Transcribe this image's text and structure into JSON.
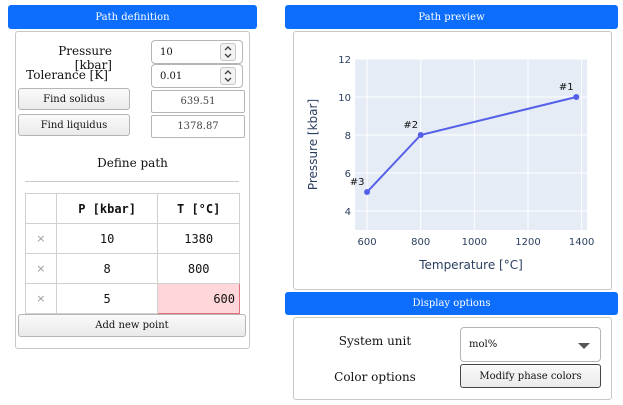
{
  "left": {
    "header": "Path definition",
    "pressure": {
      "label": "Pressure [kbar]",
      "value": "10"
    },
    "tolerance": {
      "label": "Tolerance [K]",
      "value": "0.01"
    },
    "find_solidus": {
      "label": "Find solidus",
      "result": "639.51"
    },
    "find_liquidus": {
      "label": "Find liquidus",
      "result": "1378.87"
    },
    "define_path_title": "Define path",
    "table": {
      "columns": [
        "P [kbar]",
        "T [°C]"
      ],
      "rows": [
        {
          "delete": "×",
          "p": "10",
          "t": "1380"
        },
        {
          "delete": "×",
          "p": "8",
          "t": "800"
        },
        {
          "delete": "×",
          "p": "5",
          "t": "600"
        }
      ]
    },
    "add_point": "Add new point"
  },
  "right": {
    "header": "Path preview",
    "display_header": "Display options",
    "system_unit": {
      "label": "System unit",
      "value": "mol%"
    },
    "color_options": {
      "label": "Color options",
      "button": "Modify phase colors"
    }
  },
  "chart_data": {
    "type": "line",
    "xlabel": "Temperature [°C]",
    "ylabel": "Pressure [kbar]",
    "xlim": [
      555,
      1420
    ],
    "ylim": [
      3.0,
      12.0
    ],
    "xticks": [
      600,
      800,
      1000,
      1200,
      1400
    ],
    "yticks": [
      4,
      6,
      8,
      10,
      12
    ],
    "grid": true,
    "series": [
      {
        "points": [
          {
            "label": "#1",
            "x": 1380,
            "y": 10
          },
          {
            "label": "#2",
            "x": 800,
            "y": 8
          },
          {
            "label": "#3",
            "x": 600,
            "y": 5
          }
        ]
      }
    ],
    "colors": {
      "line": "#5560e8",
      "plot_bg": "#e5ecf6",
      "grid": "#ffffff"
    }
  },
  "colors": {
    "header": "#0d6efd",
    "invalid_fill": "#ffd6d9",
    "invalid_border": "#e0707c"
  }
}
